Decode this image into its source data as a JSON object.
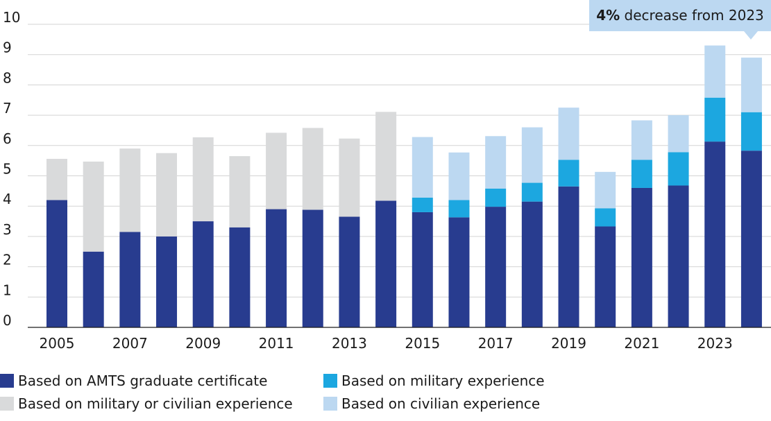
{
  "chart_data": {
    "type": "bar",
    "stacked": true,
    "title": "",
    "xlabel": "",
    "ylabel": "",
    "ylim": [
      0,
      10
    ],
    "yticks": [
      0,
      1,
      2,
      3,
      4,
      5,
      6,
      7,
      8,
      9,
      10
    ],
    "grid": true,
    "legend_placement": "bottom",
    "categories": [
      "2005",
      "2006",
      "2007",
      "2008",
      "2009",
      "2010",
      "2011",
      "2012",
      "2013",
      "2014",
      "2015",
      "2016",
      "2017",
      "2018",
      "2019",
      "2020",
      "2021",
      "2022",
      "2023",
      "2024"
    ],
    "x_tick_labels": [
      "2005",
      "2007",
      "2009",
      "2011",
      "2013",
      "2015",
      "2017",
      "2019",
      "2021",
      "2023"
    ],
    "series": [
      {
        "name": "Based on AMTS graduate certificate",
        "color": "#283c8f",
        "values": [
          4.2,
          2.5,
          3.15,
          3.0,
          3.5,
          3.3,
          3.9,
          3.88,
          3.65,
          4.18,
          3.8,
          3.63,
          3.98,
          4.15,
          4.65,
          3.33,
          4.6,
          4.68,
          6.13,
          5.83
        ]
      },
      {
        "name": "Based on military experience",
        "color": "#1ca7e0",
        "values": [
          0,
          0,
          0,
          0,
          0,
          0,
          0,
          0,
          0,
          0,
          0.48,
          0.57,
          0.6,
          0.62,
          0.88,
          0.6,
          0.93,
          1.1,
          1.45,
          1.27
        ]
      },
      {
        "name": "Based on military or civilian experience",
        "color": "#d9dadb",
        "values": [
          1.36,
          2.97,
          2.75,
          2.75,
          2.77,
          2.35,
          2.52,
          2.7,
          2.58,
          2.93,
          0,
          0,
          0,
          0,
          0,
          0,
          0,
          0,
          0,
          0
        ]
      },
      {
        "name": "Based on civilian experience",
        "color": "#bcd8f1",
        "values": [
          0,
          0,
          0,
          0,
          0,
          0,
          0,
          0,
          0,
          0,
          2.0,
          1.57,
          1.73,
          1.83,
          1.72,
          1.2,
          1.3,
          1.22,
          1.72,
          1.8
        ]
      }
    ],
    "annotation": {
      "bold": "4%",
      "text": " decrease from 2023"
    }
  },
  "legend": [
    {
      "label": "Based on AMTS graduate certificate",
      "color": "#283c8f"
    },
    {
      "label": "Based on military experience",
      "color": "#1ca7e0"
    },
    {
      "label": "Based on military or civilian experience",
      "color": "#d9dadb"
    },
    {
      "label": "Based on civilian experience",
      "color": "#bcd8f1"
    }
  ]
}
